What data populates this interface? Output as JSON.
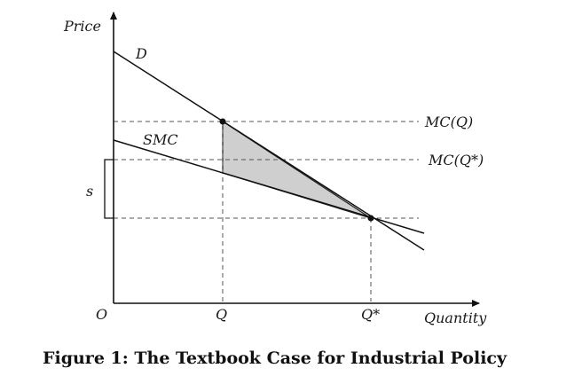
{
  "axes": {
    "y_title": "Price",
    "x_title": "Quantity",
    "origin": "O"
  },
  "curves": {
    "demand_label": "D",
    "smc_label": "SMC"
  },
  "levels": {
    "mc_q": "MC(Q)",
    "mc_q_star": "MC(Q*)",
    "subsidy": "s"
  },
  "ticks": {
    "q": "Q",
    "q_star": "Q*"
  },
  "caption": "Figure 1: The Textbook Case for Industrial Policy"
}
